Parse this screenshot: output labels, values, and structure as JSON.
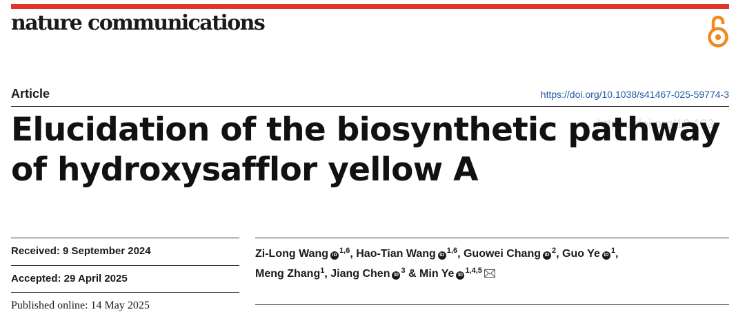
{
  "header": {
    "journal": "nature communications",
    "accent_color": "#e3342a",
    "open_access_icon": "open-access-lock-icon",
    "open_access_color": "#f08a1c"
  },
  "article": {
    "type": "Article",
    "doi_url": "https://doi.org/10.1038/s41467-025-59774-3",
    "title": "Elucidation of the biosynthetic pathway of hydroxysafflor yellow A",
    "watermark": "https://doi.org/10.103"
  },
  "dates": {
    "received": "Received: 9 September 2024",
    "accepted": "Accepted: 29 April 2025",
    "published": "Published online: 14 May 2025"
  },
  "authors": {
    "line1": [
      {
        "name": "Zi-Long Wang",
        "aff": "1,6",
        "sep": ","
      },
      {
        "name": "Hao-Tian Wang",
        "aff": "1,6",
        "sep": ","
      },
      {
        "name": "Guowei Chang",
        "aff": "2",
        "sep": ","
      },
      {
        "name": "Guo Ye",
        "aff": "1",
        "sep": ","
      }
    ],
    "line2": [
      {
        "name": "Meng Zhang",
        "aff": "1",
        "sep": ","
      },
      {
        "name": "Jiang Chen",
        "aff": "3",
        "sep": ""
      },
      {
        "name": "Min Ye",
        "aff": "1,4,5",
        "sep": ""
      }
    ],
    "ampersand": "&",
    "orcid_label": "iD",
    "mail_icon": "envelope-icon"
  }
}
